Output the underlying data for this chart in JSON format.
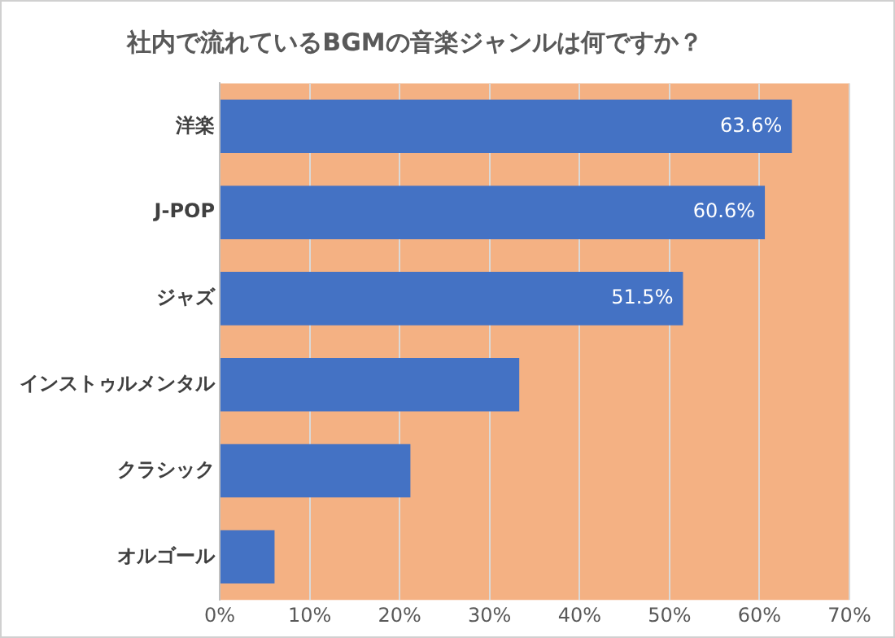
{
  "chart_data": {
    "type": "bar",
    "orientation": "horizontal",
    "title": "社内で流れているBGMの音楽ジャンルは何ですか？",
    "categories": [
      "洋楽",
      "J-POP",
      "ジャズ",
      "インストゥルメンタル",
      "クラシック",
      "オルゴール"
    ],
    "values": [
      63.6,
      60.6,
      51.5,
      33.3,
      21.2,
      6.1
    ],
    "color": "#4472c4",
    "value_labels": [
      "63.6%",
      "60.6%",
      "51.5%",
      null,
      null,
      null
    ],
    "xlim": [
      0,
      70
    ],
    "xticks": [
      {
        "value": 0,
        "label": "0%"
      },
      {
        "value": 10,
        "label": "10%"
      },
      {
        "value": 20,
        "label": "20%"
      },
      {
        "value": 30,
        "label": "30%"
      },
      {
        "value": 40,
        "label": "40%"
      },
      {
        "value": 50,
        "label": "50%"
      },
      {
        "value": 60,
        "label": "60%"
      },
      {
        "value": 70,
        "label": "70%"
      }
    ],
    "grid": "x",
    "legend": false
  }
}
